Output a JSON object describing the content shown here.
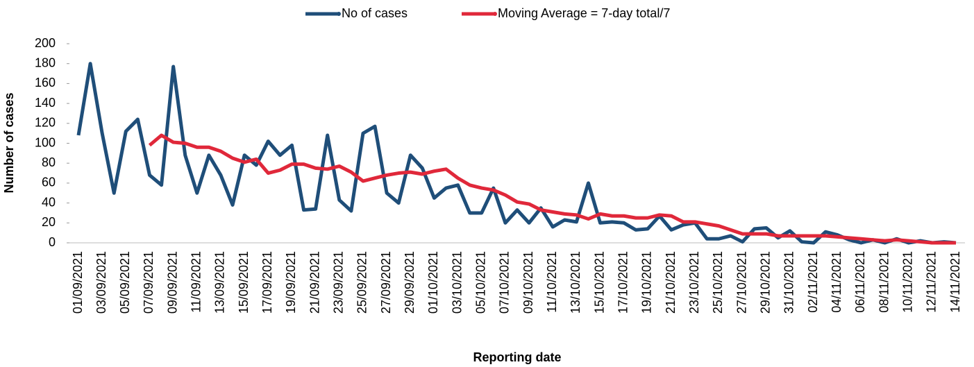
{
  "chart_data": {
    "type": "line",
    "x_label": "Reporting date",
    "y_label": "Number of cases",
    "categories": [
      "01/09/2021",
      null,
      "03/09/2021",
      null,
      "05/09/2021",
      null,
      "07/09/2021",
      null,
      "09/09/2021",
      null,
      "11/09/2021",
      null,
      "13/09/2021",
      null,
      "15/09/2021",
      null,
      "17/09/2021",
      null,
      "19/09/2021",
      null,
      "21/09/2021",
      null,
      "23/09/2021",
      null,
      "25/09/2021",
      null,
      "27/09/2021",
      null,
      "29/09/2021",
      null,
      "01/10/2021",
      null,
      "03/10/2021",
      null,
      "05/10/2021",
      null,
      "07/10/2021",
      null,
      "09/10/2021",
      null,
      "11/10/2021",
      null,
      "13/10/2021",
      null,
      "15/10/2021",
      null,
      "17/10/2021",
      null,
      "19/10/2021",
      null,
      "21/10/2021",
      null,
      "23/10/2021",
      null,
      "25/10/2021",
      null,
      "27/10/2021",
      null,
      "29/10/2021",
      null,
      "31/10/2021",
      null,
      "02/11/2021",
      null,
      "04/11/2021",
      null,
      "06/11/2021",
      null,
      "08/11/2021",
      null,
      "10/11/2021",
      null,
      "12/11/2021",
      null,
      "14/11/2021"
    ],
    "series": [
      {
        "name": "No of cases",
        "color": "#1f4e79",
        "values": [
          108,
          180,
          110,
          50,
          112,
          124,
          68,
          58,
          177,
          88,
          50,
          88,
          68,
          38,
          88,
          78,
          102,
          88,
          98,
          33,
          34,
          108,
          43,
          32,
          110,
          117,
          50,
          40,
          88,
          75,
          45,
          55,
          58,
          30,
          30,
          55,
          20,
          33,
          20,
          35,
          16,
          23,
          21,
          60,
          20,
          21,
          20,
          13,
          14,
          27,
          13,
          18,
          20,
          4,
          4,
          7,
          1,
          14,
          15,
          5,
          12,
          1,
          0,
          11,
          8,
          3,
          0,
          3,
          0,
          4,
          0,
          2,
          0,
          1,
          0
        ]
      },
      {
        "name": "Moving Average = 7-day total/7",
        "color": "#e0283a",
        "values": [
          null,
          null,
          null,
          null,
          null,
          null,
          98,
          108,
          101,
          100,
          96,
          96,
          92,
          85,
          81,
          84,
          70,
          73,
          79,
          79,
          75,
          74,
          77,
          71,
          62,
          65,
          68,
          70,
          71,
          69,
          72,
          74,
          65,
          58,
          55,
          53,
          48,
          41,
          39,
          33,
          31,
          29,
          28,
          24,
          29,
          27,
          27,
          25,
          25,
          28,
          27,
          21,
          21,
          19,
          17,
          13,
          9,
          9,
          9,
          7,
          7,
          7,
          7,
          7,
          6,
          5,
          4,
          3,
          2,
          3,
          2,
          1,
          0,
          0,
          0
        ]
      }
    ],
    "ylim": [
      0,
      200
    ],
    "yticks": [
      0,
      20,
      40,
      60,
      80,
      100,
      120,
      140,
      160,
      180,
      200
    ],
    "grid": false,
    "legend": "top"
  }
}
